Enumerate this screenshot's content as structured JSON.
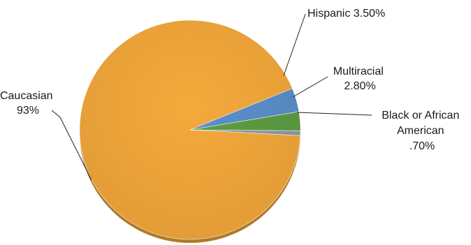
{
  "chart_data": {
    "type": "pie",
    "title": "",
    "slices": [
      {
        "name": "Caucasian",
        "value": 93,
        "value_label": "93%",
        "color": "#F5A93B"
      },
      {
        "name": "Hispanic",
        "value": 3.5,
        "value_label": "3.50%",
        "color": "#5B8FCB"
      },
      {
        "name": "Multiracial",
        "value": 2.8,
        "value_label": "2.80%",
        "color": "#5E9E43"
      },
      {
        "name": "Black or African American",
        "value": 0.7,
        "value_label": ".70%",
        "color": "#8E9BA8"
      }
    ],
    "labels": {
      "caucasian_line1": "Caucasian",
      "caucasian_line2": "93%",
      "hispanic": "Hispanic 3.50%",
      "multiracial_line1": "Multiracial",
      "multiracial_line2": "2.80%",
      "black_line1": "Black or African",
      "black_line2": "American",
      "black_line3": ".70%"
    },
    "legend": "none",
    "style": "3d-tilted"
  }
}
